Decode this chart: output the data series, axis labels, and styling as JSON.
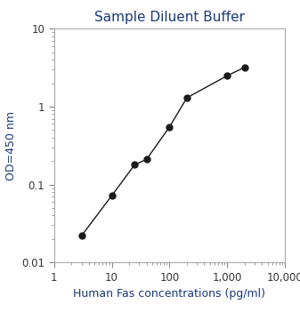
{
  "title": "Sample Diluent Buffer",
  "xlabel": "Human Fas concentrations (pg/ml)",
  "ylabel": "OD=450 nm",
  "x_data": [
    3,
    10,
    25,
    40,
    100,
    200,
    1000,
    2000
  ],
  "y_data": [
    0.022,
    0.072,
    0.18,
    0.21,
    0.55,
    1.3,
    2.5,
    3.2
  ],
  "xlim": [
    1,
    10000
  ],
  "ylim": [
    0.01,
    10
  ],
  "line_color": "#1a1a1a",
  "marker_color": "#1a1a1a",
  "marker_size": 5,
  "title_color": "#1a3a7a",
  "label_color": "#1a3a7a",
  "tick_label_color": "#333333",
  "spine_color": "#aaaaaa",
  "title_fontsize": 11,
  "label_fontsize": 9,
  "tick_fontsize": 8.5
}
